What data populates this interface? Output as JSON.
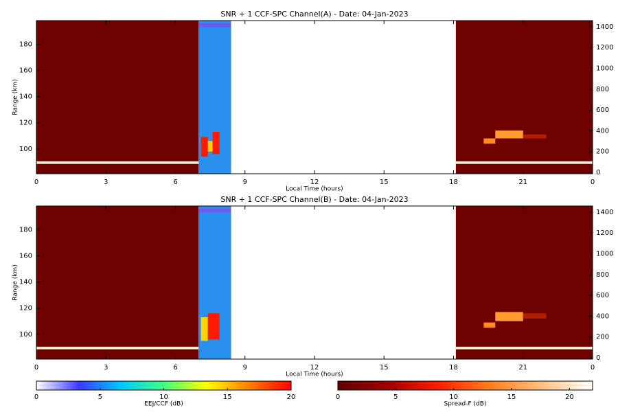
{
  "chart_data": [
    {
      "type": "heatmap",
      "title": "SNR + 1 CCF-SPC Channel(A) - Date: 04-Jan-2023",
      "xlabel": "Local Time (hours)",
      "ylabel": "Range (km)",
      "xlim": [
        0,
        24
      ],
      "xticks": [
        0,
        3,
        6,
        9,
        12,
        15,
        18,
        21,
        {
          "value": 24,
          "label": "0"
        }
      ],
      "ylim": [
        81,
        198
      ],
      "yticks": [
        100,
        120,
        140,
        160,
        180
      ],
      "y2lim": [
        -13,
        1459
      ],
      "y2ticks": [
        0,
        200,
        400,
        600,
        800,
        1000,
        1200,
        1400
      ],
      "blocks": [
        {
          "x": [
            0,
            7
          ],
          "color": "#6e0000"
        },
        {
          "x": [
            7,
            8.4
          ],
          "color": "#2a90f0"
        },
        {
          "x": [
            18.1,
            24
          ],
          "color": "#6e0000"
        }
      ],
      "echoes": [
        {
          "x": [
            0,
            7
          ],
          "y": [
            88.5,
            90.5
          ],
          "color": "#fff0d8"
        },
        {
          "x": [
            18.1,
            24
          ],
          "y": [
            88.5,
            90.5
          ],
          "color": "#fff0d8"
        },
        {
          "x": [
            7,
            8.4
          ],
          "y": [
            193,
            196
          ],
          "color": "#6a5cf0"
        },
        {
          "x": [
            7.1,
            7.4
          ],
          "y": [
            94,
            109
          ],
          "color": "#ff1a00"
        },
        {
          "x": [
            7.6,
            7.9
          ],
          "y": [
            96,
            113
          ],
          "color": "#ff1a00"
        },
        {
          "x": [
            7.4,
            7.6
          ],
          "y": [
            98,
            106
          ],
          "color": "#ffd400"
        },
        {
          "x": [
            19.3,
            19.8
          ],
          "y": [
            104,
            108
          ],
          "color": "#ff8c20"
        },
        {
          "x": [
            19.8,
            21.0
          ],
          "y": [
            108,
            114
          ],
          "color": "#ff9a30"
        },
        {
          "x": [
            21.0,
            22.0
          ],
          "y": [
            108,
            111
          ],
          "color": "#b02000"
        }
      ]
    },
    {
      "type": "heatmap",
      "title": "SNR + 1 CCF-SPC Channel(B) - Date: 04-Jan-2023",
      "xlabel": "Local Time (hours)",
      "ylabel": "Range (km)",
      "xlim": [
        0,
        24
      ],
      "xticks": [
        0,
        3,
        6,
        9,
        12,
        15,
        18,
        21,
        {
          "value": 24,
          "label": "0"
        }
      ],
      "ylim": [
        81,
        198
      ],
      "yticks": [
        100,
        120,
        140,
        160,
        180
      ],
      "y2lim": [
        -13,
        1459
      ],
      "y2ticks": [
        0,
        200,
        400,
        600,
        800,
        1000,
        1200,
        1400
      ],
      "blocks": [
        {
          "x": [
            0,
            7
          ],
          "color": "#6e0000"
        },
        {
          "x": [
            7,
            8.4
          ],
          "color": "#2a90f0"
        },
        {
          "x": [
            18.1,
            24
          ],
          "color": "#6e0000"
        }
      ],
      "echoes": [
        {
          "x": [
            0,
            7
          ],
          "y": [
            88.5,
            90.5
          ],
          "color": "#fff0d8"
        },
        {
          "x": [
            18.1,
            24
          ],
          "y": [
            88.5,
            90.5
          ],
          "color": "#fff0d8"
        },
        {
          "x": [
            7,
            8.4
          ],
          "y": [
            193,
            196
          ],
          "color": "#6a5cf0"
        },
        {
          "x": [
            7.1,
            7.4
          ],
          "y": [
            95,
            113
          ],
          "color": "#ffd400"
        },
        {
          "x": [
            7.4,
            7.9
          ],
          "y": [
            96,
            116
          ],
          "color": "#ff1a00"
        },
        {
          "x": [
            19.3,
            19.8
          ],
          "y": [
            105,
            109
          ],
          "color": "#ff8c20"
        },
        {
          "x": [
            19.8,
            21.0
          ],
          "y": [
            110,
            117
          ],
          "color": "#ff9a30"
        },
        {
          "x": [
            21.0,
            22.0
          ],
          "y": [
            112,
            116
          ],
          "color": "#b02000"
        }
      ]
    },
    {
      "type": "colorbar",
      "label": "EEJ/CCF (dB)",
      "xlim": [
        0,
        20
      ],
      "xticks": [
        0,
        5,
        10,
        15,
        20
      ],
      "colors": [
        "#ffffff",
        "#3a3aff",
        "#00c8ff",
        "#40ff80",
        "#ffff00",
        "#ff8000",
        "#ff0000"
      ]
    },
    {
      "type": "colorbar",
      "label": "Spread-F (dB)",
      "xlim": [
        0,
        22
      ],
      "xticks": [
        0,
        5,
        10,
        15,
        20
      ],
      "colors": [
        "#600000",
        "#a00000",
        "#ff2000",
        "#ff8020",
        "#ffc080",
        "#ffffff"
      ]
    }
  ]
}
